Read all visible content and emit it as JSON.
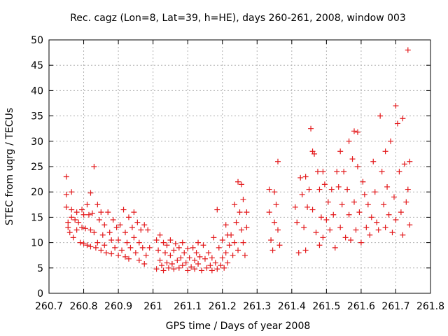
{
  "chart_data": {
    "type": "scatter",
    "title": "Rec. cagz (Lon=8, Lat=39, h=HE), days 260-261, 2008, window 003",
    "xlabel": "GPS time / Days of year 2008",
    "ylabel": "STEC from uqrg / TECUs",
    "xlim": [
      260.7,
      261.8
    ],
    "ylim": [
      0,
      50
    ],
    "x_ticks": [
      260.7,
      260.8,
      260.9,
      261,
      261.1,
      261.2,
      261.3,
      261.4,
      261.5,
      261.6,
      261.7,
      261.8
    ],
    "x_tick_labels": [
      "260.7",
      "260.8",
      "260.9",
      "261",
      "261.1",
      "261.2",
      "261.3",
      "261.4",
      "261.5",
      "261.6",
      "261.7",
      "261.8"
    ],
    "y_ticks": [
      0,
      5,
      10,
      15,
      20,
      25,
      30,
      35,
      40,
      45,
      50
    ],
    "y_tick_labels": [
      "0",
      "5",
      "10",
      "15",
      "20",
      "25",
      "30",
      "35",
      "40",
      "45",
      "50"
    ],
    "grid": true,
    "marker": "plus",
    "marker_color": "#e31a1c",
    "series": [
      {
        "points": [
          [
            260.75,
            23.0
          ],
          [
            260.75,
            19.5
          ],
          [
            260.75,
            17.0
          ],
          [
            260.755,
            14.0
          ],
          [
            260.755,
            13.0
          ],
          [
            260.76,
            12.0
          ],
          [
            260.765,
            20.0
          ],
          [
            260.765,
            16.5
          ],
          [
            260.765,
            15.0
          ],
          [
            260.77,
            11.0
          ],
          [
            260.775,
            14.5
          ],
          [
            260.78,
            16.0
          ],
          [
            260.78,
            12.5
          ],
          [
            260.785,
            14.0
          ],
          [
            260.79,
            10.0
          ],
          [
            260.795,
            16.5
          ],
          [
            260.795,
            13.0
          ],
          [
            260.8,
            9.8
          ],
          [
            260.8,
            15.5
          ],
          [
            260.805,
            12.8
          ],
          [
            260.81,
            17.5
          ],
          [
            260.81,
            9.5
          ],
          [
            260.815,
            15.5
          ],
          [
            260.82,
            19.8
          ],
          [
            260.82,
            12.5
          ],
          [
            260.82,
            9.2
          ],
          [
            260.825,
            15.8
          ],
          [
            260.83,
            25.0
          ],
          [
            260.83,
            12.0
          ],
          [
            260.835,
            9.0
          ],
          [
            260.84,
            17.5
          ],
          [
            260.84,
            10.0
          ],
          [
            260.845,
            14.5
          ],
          [
            260.85,
            16.0
          ],
          [
            260.85,
            8.5
          ],
          [
            260.855,
            11.5
          ],
          [
            260.86,
            13.5
          ],
          [
            260.86,
            9.5
          ],
          [
            260.865,
            8.0
          ],
          [
            260.87,
            16.0
          ],
          [
            260.875,
            12.0
          ],
          [
            260.88,
            10.5
          ],
          [
            260.88,
            7.8
          ],
          [
            260.885,
            14.5
          ],
          [
            260.89,
            9.0
          ],
          [
            260.895,
            13.0
          ],
          [
            260.9,
            10.5
          ],
          [
            260.9,
            7.5
          ],
          [
            260.905,
            13.5
          ],
          [
            260.91,
            8.5
          ],
          [
            260.915,
            16.5
          ],
          [
            260.92,
            12.0
          ],
          [
            260.92,
            7.2
          ],
          [
            260.925,
            10.0
          ],
          [
            260.93,
            15.0
          ],
          [
            260.93,
            6.8
          ],
          [
            260.935,
            9.0
          ],
          [
            260.94,
            13.0
          ],
          [
            260.945,
            16.0
          ],
          [
            260.945,
            11.0
          ],
          [
            260.95,
            8.0
          ],
          [
            260.955,
            14.0
          ],
          [
            260.96,
            6.5
          ],
          [
            260.96,
            10.0
          ],
          [
            260.965,
            12.5
          ],
          [
            260.97,
            9.0
          ],
          [
            260.975,
            13.5
          ],
          [
            260.975,
            5.8
          ],
          [
            260.98,
            7.5
          ],
          [
            260.985,
            12.5
          ],
          [
            260.99,
            9.0
          ],
          [
            261.01,
            10.5
          ],
          [
            261.01,
            4.8
          ],
          [
            261.015,
            8.5
          ],
          [
            261.02,
            11.5
          ],
          [
            261.02,
            6.5
          ],
          [
            261.025,
            5.5
          ],
          [
            261.03,
            10.0
          ],
          [
            261.03,
            4.5
          ],
          [
            261.035,
            8.0
          ],
          [
            261.04,
            9.5
          ],
          [
            261.04,
            6.0
          ],
          [
            261.045,
            5.0
          ],
          [
            261.05,
            10.5
          ],
          [
            261.05,
            7.5
          ],
          [
            261.055,
            5.8
          ],
          [
            261.06,
            8.5
          ],
          [
            261.06,
            4.8
          ],
          [
            261.065,
            9.8
          ],
          [
            261.07,
            6.5
          ],
          [
            261.075,
            9.0
          ],
          [
            261.075,
            5.0
          ],
          [
            261.08,
            7.0
          ],
          [
            261.085,
            10.0
          ],
          [
            261.085,
            5.5
          ],
          [
            261.09,
            8.0
          ],
          [
            261.095,
            6.0
          ],
          [
            261.1,
            8.8
          ],
          [
            261.1,
            4.5
          ],
          [
            261.105,
            7.0
          ],
          [
            261.11,
            5.2
          ],
          [
            261.115,
            9.0
          ],
          [
            261.12,
            6.5
          ],
          [
            261.12,
            4.8
          ],
          [
            261.125,
            8.0
          ],
          [
            261.13,
            10.0
          ],
          [
            261.13,
            5.8
          ],
          [
            261.135,
            7.2
          ],
          [
            261.14,
            4.5
          ],
          [
            261.145,
            9.5
          ],
          [
            261.15,
            6.8
          ],
          [
            261.155,
            5.0
          ],
          [
            261.16,
            8.0
          ],
          [
            261.165,
            5.5
          ],
          [
            261.17,
            7.0
          ],
          [
            261.17,
            4.5
          ],
          [
            261.175,
            11.0
          ],
          [
            261.18,
            6.0
          ],
          [
            261.185,
            16.5
          ],
          [
            261.185,
            4.8
          ],
          [
            261.19,
            9.0
          ],
          [
            261.195,
            5.5
          ],
          [
            261.2,
            10.5
          ],
          [
            261.2,
            7.0
          ],
          [
            261.205,
            5.0
          ],
          [
            261.21,
            13.5
          ],
          [
            261.21,
            8.0
          ],
          [
            261.215,
            11.5
          ],
          [
            261.215,
            6.0
          ],
          [
            261.22,
            9.5
          ],
          [
            261.225,
            11.5
          ],
          [
            261.23,
            7.5
          ],
          [
            261.235,
            17.5
          ],
          [
            261.235,
            10.0
          ],
          [
            261.24,
            14.0
          ],
          [
            261.245,
            22.0
          ],
          [
            261.245,
            8.5
          ],
          [
            261.25,
            16.0
          ],
          [
            261.255,
            21.5
          ],
          [
            261.255,
            12.5
          ],
          [
            261.26,
            18.5
          ],
          [
            261.26,
            10.0
          ],
          [
            261.265,
            7.5
          ],
          [
            261.27,
            16.0
          ],
          [
            261.27,
            13.0
          ],
          [
            261.335,
            20.5
          ],
          [
            261.335,
            16.0
          ],
          [
            261.34,
            10.5
          ],
          [
            261.345,
            8.5
          ],
          [
            261.35,
            20.0
          ],
          [
            261.35,
            14.0
          ],
          [
            261.355,
            17.5
          ],
          [
            261.36,
            26.0
          ],
          [
            261.36,
            12.5
          ],
          [
            261.365,
            9.5
          ],
          [
            261.41,
            17.0
          ],
          [
            261.415,
            14.0
          ],
          [
            261.42,
            8.0
          ],
          [
            261.425,
            22.8
          ],
          [
            261.43,
            19.5
          ],
          [
            261.435,
            13.0
          ],
          [
            261.44,
            23.0
          ],
          [
            261.44,
            8.5
          ],
          [
            261.445,
            17.0
          ],
          [
            261.45,
            20.5
          ],
          [
            261.455,
            32.5
          ],
          [
            261.46,
            28.0
          ],
          [
            261.46,
            16.5
          ],
          [
            261.465,
            27.5
          ],
          [
            261.47,
            12.0
          ],
          [
            261.475,
            24.0
          ],
          [
            261.48,
            20.5
          ],
          [
            261.48,
            9.5
          ],
          [
            261.485,
            15.0
          ],
          [
            261.49,
            24.0
          ],
          [
            261.49,
            11.0
          ],
          [
            261.495,
            21.5
          ],
          [
            261.5,
            14.5
          ],
          [
            261.505,
            18.0
          ],
          [
            261.51,
            12.5
          ],
          [
            261.515,
            20.5
          ],
          [
            261.52,
            15.5
          ],
          [
            261.525,
            9.0
          ],
          [
            261.53,
            24.0
          ],
          [
            261.535,
            21.0
          ],
          [
            261.54,
            28.0
          ],
          [
            261.54,
            13.0
          ],
          [
            261.545,
            17.5
          ],
          [
            261.55,
            24.0
          ],
          [
            261.555,
            11.0
          ],
          [
            261.56,
            20.5
          ],
          [
            261.565,
            30.0
          ],
          [
            261.565,
            15.5
          ],
          [
            261.57,
            10.5
          ],
          [
            261.575,
            26.5
          ],
          [
            261.58,
            32.0
          ],
          [
            261.58,
            18.0
          ],
          [
            261.585,
            12.5
          ],
          [
            261.59,
            25.0
          ],
          [
            261.59,
            31.8
          ],
          [
            261.595,
            16.0
          ],
          [
            261.6,
            10.0
          ],
          [
            261.605,
            22.0
          ],
          [
            261.61,
            19.5
          ],
          [
            261.615,
            13.0
          ],
          [
            261.62,
            17.5
          ],
          [
            261.625,
            11.5
          ],
          [
            261.63,
            15.0
          ],
          [
            261.635,
            26.0
          ],
          [
            261.64,
            20.0
          ],
          [
            261.645,
            14.0
          ],
          [
            261.65,
            12.5
          ],
          [
            261.655,
            35.0
          ],
          [
            261.66,
            24.0
          ],
          [
            261.665,
            17.5
          ],
          [
            261.67,
            28.0
          ],
          [
            261.67,
            13.0
          ],
          [
            261.675,
            21.0
          ],
          [
            261.68,
            15.5
          ],
          [
            261.685,
            30.0
          ],
          [
            261.69,
            12.0
          ],
          [
            261.695,
            19.0
          ],
          [
            261.7,
            37.0
          ],
          [
            261.7,
            14.5
          ],
          [
            261.705,
            33.5
          ],
          [
            261.71,
            24.0
          ],
          [
            261.715,
            16.0
          ],
          [
            261.72,
            34.5
          ],
          [
            261.72,
            11.5
          ],
          [
            261.725,
            25.5
          ],
          [
            261.73,
            18.0
          ],
          [
            261.735,
            20.5
          ],
          [
            261.735,
            48.0
          ],
          [
            261.74,
            26.0
          ],
          [
            261.74,
            13.5
          ]
        ]
      }
    ]
  }
}
